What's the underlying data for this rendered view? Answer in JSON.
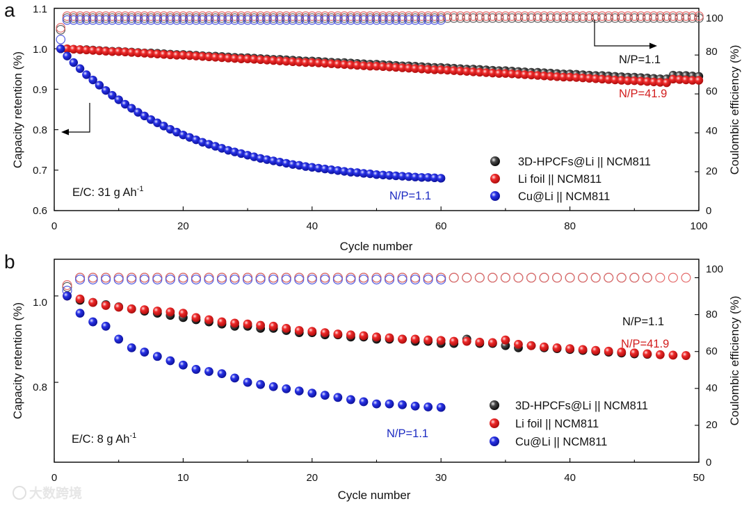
{
  "colors": {
    "black": "#2a2a2a",
    "red": "#e21e1e",
    "blue": "#1f2ad8",
    "red_text": "#d21d1d",
    "blue_text": "#1d2bc2"
  },
  "watermark": "大数跨境",
  "chart_data": [
    {
      "type": "scatter",
      "panel_label": "a",
      "xlabel": "Cycle number",
      "ylabel": "Capacity retention (%)",
      "y2label": "Coulombic efficiency (%)",
      "xlim": [
        0,
        100
      ],
      "ylim": [
        0.6,
        1.1
      ],
      "y2lim": [
        0,
        104
      ],
      "xticks": [
        "0",
        "20",
        "40",
        "60",
        "80",
        "100"
      ],
      "yticks": [
        "0.6",
        "0.7",
        "0.8",
        "0.9",
        "1.0",
        "1.1"
      ],
      "y2ticks": [
        "0",
        "20",
        "40",
        "60",
        "80",
        "100"
      ],
      "cycles": 100,
      "legend": [
        {
          "label": "3D-HPCFs@Li || NCM811",
          "color_key": "black"
        },
        {
          "label": "Li foil || NCM811",
          "color_key": "red"
        },
        {
          "label": "Cu@Li || NCM811",
          "color_key": "blue"
        }
      ],
      "annotations": [
        "N/P=1.1",
        "N/P=41.9",
        "N/P=1.1",
        "E/C: 31 g Ah"
      ],
      "annotation_superscript": "-1",
      "series": [
        {
          "name": "3D-HPCFs@Li || NCM811",
          "color_key": "black",
          "n": 100,
          "capacity": [
            1.0,
            1.0,
            0.999,
            0.998,
            0.998,
            0.997,
            0.996,
            0.995,
            0.994,
            0.994,
            0.993,
            0.992,
            0.991,
            0.99,
            0.99,
            0.989,
            0.988,
            0.987,
            0.986,
            0.986,
            0.985,
            0.984,
            0.983,
            0.982,
            0.982,
            0.981,
            0.98,
            0.979,
            0.978,
            0.978,
            0.977,
            0.976,
            0.975,
            0.974,
            0.974,
            0.973,
            0.972,
            0.971,
            0.97,
            0.97,
            0.969,
            0.968,
            0.967,
            0.966,
            0.966,
            0.965,
            0.964,
            0.963,
            0.962,
            0.962,
            0.961,
            0.96,
            0.959,
            0.958,
            0.958,
            0.957,
            0.956,
            0.955,
            0.954,
            0.954,
            0.953,
            0.952,
            0.951,
            0.95,
            0.95,
            0.949,
            0.948,
            0.947,
            0.946,
            0.946,
            0.945,
            0.944,
            0.943,
            0.942,
            0.942,
            0.941,
            0.94,
            0.939,
            0.938,
            0.938,
            0.937,
            0.936,
            0.935,
            0.934,
            0.934,
            0.933,
            0.932,
            0.931,
            0.93,
            0.93,
            0.929,
            0.928,
            0.927,
            0.926,
            0.926,
            0.935,
            0.934,
            0.934,
            0.933,
            0.932
          ],
          "ce": [
            93,
            99,
            99,
            99,
            99,
            99,
            99,
            99,
            99,
            99,
            99,
            99,
            99,
            99,
            99,
            99,
            99,
            99,
            99,
            99,
            99,
            99,
            99,
            99,
            99,
            99,
            99,
            99,
            99,
            99,
            99,
            99,
            99,
            99,
            99,
            99,
            99,
            99,
            99,
            99,
            99,
            99,
            99,
            99,
            99,
            99,
            99,
            99,
            99,
            99,
            99,
            99,
            99,
            99,
            99,
            99,
            99,
            99,
            99,
            99,
            99,
            99,
            99,
            99,
            99,
            99,
            99,
            99,
            99,
            99,
            99,
            99,
            99,
            99,
            99,
            99,
            99,
            99,
            99,
            99,
            99,
            99,
            99,
            99,
            99,
            99,
            99,
            99,
            99,
            99,
            99,
            99,
            99,
            99,
            99,
            99,
            99,
            99,
            99,
            99
          ]
        },
        {
          "name": "Li foil || NCM811",
          "color_key": "red",
          "n": 100,
          "capacity": [
            1.0,
            1.0,
            0.999,
            0.998,
            0.997,
            0.996,
            0.995,
            0.994,
            0.993,
            0.993,
            0.992,
            0.991,
            0.99,
            0.989,
            0.988,
            0.987,
            0.986,
            0.985,
            0.984,
            0.984,
            0.983,
            0.982,
            0.981,
            0.98,
            0.979,
            0.978,
            0.977,
            0.976,
            0.975,
            0.975,
            0.974,
            0.973,
            0.972,
            0.971,
            0.97,
            0.969,
            0.968,
            0.967,
            0.966,
            0.966,
            0.965,
            0.964,
            0.963,
            0.962,
            0.961,
            0.96,
            0.959,
            0.958,
            0.957,
            0.957,
            0.956,
            0.955,
            0.954,
            0.953,
            0.952,
            0.951,
            0.95,
            0.949,
            0.948,
            0.948,
            0.947,
            0.946,
            0.945,
            0.944,
            0.943,
            0.942,
            0.941,
            0.94,
            0.939,
            0.939,
            0.938,
            0.937,
            0.936,
            0.935,
            0.934,
            0.933,
            0.932,
            0.931,
            0.93,
            0.93,
            0.929,
            0.928,
            0.927,
            0.926,
            0.925,
            0.924,
            0.923,
            0.922,
            0.921,
            0.921,
            0.92,
            0.919,
            0.918,
            0.917,
            0.916,
            0.925,
            0.924,
            0.923,
            0.922,
            0.922
          ],
          "ce": [
            94,
            100,
            100,
            100,
            100,
            100,
            100,
            100,
            100,
            100,
            100,
            100,
            100,
            100,
            100,
            100,
            100,
            100,
            100,
            100,
            100,
            100,
            100,
            100,
            100,
            100,
            100,
            100,
            100,
            100,
            100,
            100,
            100,
            100,
            100,
            100,
            100,
            100,
            100,
            100,
            100,
            100,
            100,
            100,
            100,
            100,
            100,
            100,
            100,
            100,
            100,
            100,
            100,
            100,
            100,
            100,
            100,
            100,
            100,
            100,
            100,
            100,
            100,
            100,
            100,
            100,
            100,
            100,
            100,
            100,
            100,
            100,
            100,
            100,
            100,
            100,
            100,
            100,
            100,
            100,
            100,
            100,
            100,
            100,
            100,
            100,
            100,
            100,
            100,
            100,
            100,
            100,
            100,
            100,
            100,
            100,
            100,
            100,
            100,
            100
          ]
        },
        {
          "name": "Cu@Li || NCM811",
          "color_key": "blue",
          "n": 60,
          "capacity": [
            1.0,
            0.982,
            0.966,
            0.951,
            0.936,
            0.923,
            0.91,
            0.897,
            0.885,
            0.874,
            0.863,
            0.853,
            0.843,
            0.834,
            0.825,
            0.817,
            0.809,
            0.801,
            0.794,
            0.787,
            0.781,
            0.775,
            0.769,
            0.764,
            0.759,
            0.754,
            0.749,
            0.745,
            0.741,
            0.737,
            0.733,
            0.729,
            0.726,
            0.723,
            0.72,
            0.717,
            0.714,
            0.712,
            0.709,
            0.707,
            0.705,
            0.703,
            0.701,
            0.699,
            0.697,
            0.695,
            0.694,
            0.692,
            0.691,
            0.689,
            0.688,
            0.687,
            0.686,
            0.685,
            0.684,
            0.683,
            0.682,
            0.682,
            0.681,
            0.68
          ],
          "ce": [
            88,
            98,
            98,
            98,
            98,
            98,
            98,
            98,
            98,
            98,
            98,
            98,
            98,
            98,
            98,
            98,
            98,
            98,
            98,
            98,
            98,
            98,
            98,
            98,
            98,
            98,
            98,
            98,
            98,
            98,
            98,
            98,
            98,
            98,
            98,
            98,
            98,
            98,
            98,
            98,
            98,
            98,
            98,
            98,
            98,
            98,
            98,
            98,
            98,
            98,
            98,
            98,
            98,
            98,
            98,
            98,
            98,
            98,
            98,
            98
          ]
        }
      ]
    },
    {
      "type": "scatter",
      "panel_label": "b",
      "xlabel": "Cycle number",
      "ylabel": "Capacity retention (%)",
      "y2label": "Coulombic efficiency (%)",
      "xlim": [
        0,
        50
      ],
      "ylim": [
        0.615,
        1.085
      ],
      "y2lim": [
        0,
        110
      ],
      "xticks": [
        "0",
        "10",
        "20",
        "30",
        "40",
        "50"
      ],
      "yticks": [
        "0.8",
        "1.0"
      ],
      "y2ticks": [
        "0",
        "20",
        "40",
        "60",
        "80",
        "100"
      ],
      "cycles": 50,
      "legend": [
        {
          "label": "3D-HPCFs@Li || NCM811",
          "color_key": "black"
        },
        {
          "label": "Li foil || NCM811",
          "color_key": "red"
        },
        {
          "label": "Cu@Li || NCM811",
          "color_key": "blue"
        }
      ],
      "annotations": [
        "N/P=1.1",
        "N/P=41.9",
        "N/P=1.1",
        "E/C: 8 g Ah"
      ],
      "annotation_superscript": "-1",
      "series": [
        {
          "name": "3D-HPCFs@Li || NCM811",
          "color_key": "black",
          "n": 46,
          "capacity": [
            1.0,
            0.99,
            0.985,
            0.98,
            0.975,
            0.97,
            0.965,
            0.96,
            0.955,
            0.95,
            0.945,
            0.94,
            0.935,
            0.93,
            0.93,
            0.925,
            0.925,
            0.92,
            0.915,
            0.915,
            0.91,
            0.91,
            0.905,
            0.905,
            0.9,
            0.9,
            0.9,
            0.895,
            0.895,
            0.89,
            0.89,
            0.9,
            0.89,
            0.89,
            0.885,
            0.88,
            0.885,
            0.88,
            0.878,
            0.876,
            0.874,
            0.872,
            0.87,
            0.868,
            0.866,
            0.865
          ],
          "ce": [
            95,
            100,
            100,
            100,
            100,
            100,
            100,
            100,
            100,
            100,
            100,
            100,
            100,
            100,
            100,
            100,
            100,
            100,
            100,
            100,
            100,
            100,
            100,
            100,
            100,
            100,
            100,
            100,
            100,
            100,
            100,
            100,
            100,
            100,
            100,
            100,
            100,
            100,
            100,
            100,
            100,
            100,
            100,
            100,
            100,
            100
          ]
        },
        {
          "name": "Li foil || NCM811",
          "color_key": "red",
          "n": 49,
          "capacity": [
            1.0,
            0.993,
            0.985,
            0.978,
            0.974,
            0.97,
            0.968,
            0.965,
            0.963,
            0.96,
            0.95,
            0.945,
            0.94,
            0.937,
            0.935,
            0.932,
            0.93,
            0.925,
            0.92,
            0.918,
            0.915,
            0.912,
            0.91,
            0.908,
            0.905,
            0.903,
            0.9,
            0.9,
            0.898,
            0.897,
            0.895,
            0.895,
            0.893,
            0.892,
            0.898,
            0.888,
            0.885,
            0.882,
            0.88,
            0.878,
            0.876,
            0.874,
            0.872,
            0.87,
            0.868,
            0.866,
            0.864,
            0.863,
            0.862
          ],
          "ce": [
            96,
            100,
            100,
            100,
            100,
            100,
            100,
            100,
            100,
            100,
            100,
            100,
            100,
            100,
            100,
            100,
            100,
            100,
            100,
            100,
            100,
            100,
            100,
            100,
            100,
            100,
            100,
            100,
            100,
            100,
            100,
            100,
            100,
            100,
            100,
            100,
            100,
            100,
            100,
            100,
            100,
            100,
            100,
            100,
            100,
            100,
            100,
            100,
            100
          ]
        },
        {
          "name": "Cu@Li || NCM811",
          "color_key": "blue",
          "n": 30,
          "capacity": [
            1.0,
            0.96,
            0.94,
            0.93,
            0.9,
            0.88,
            0.87,
            0.86,
            0.85,
            0.84,
            0.83,
            0.825,
            0.82,
            0.81,
            0.8,
            0.795,
            0.79,
            0.785,
            0.78,
            0.775,
            0.77,
            0.765,
            0.76,
            0.755,
            0.75,
            0.75,
            0.748,
            0.745,
            0.743,
            0.742
          ],
          "ce": [
            93,
            99,
            99,
            99,
            99,
            99,
            99,
            99,
            99,
            99,
            99,
            99,
            99,
            99,
            99,
            99,
            99,
            99,
            99,
            99,
            99,
            99,
            99,
            99,
            99,
            99,
            99,
            99,
            99,
            99
          ]
        }
      ]
    }
  ]
}
